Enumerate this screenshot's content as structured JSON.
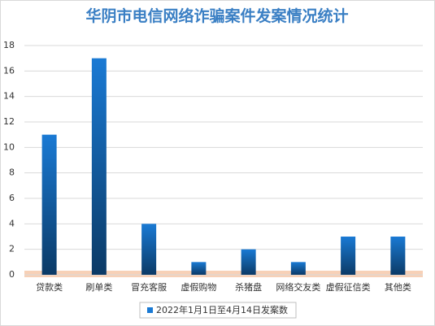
{
  "chart_data": {
    "type": "bar",
    "title": "华阴市电信网络诈骗案件发案情况统计",
    "categories": [
      "贷款类",
      "刷单类",
      "冒充客服",
      "虚假购物",
      "杀猪盘",
      "网络交友类",
      "虚假征信类",
      "其他类"
    ],
    "series": [
      {
        "name": "2022年1月1日至4月14日发案数",
        "color": "#1a7ad4",
        "values": [
          11,
          17,
          4,
          1,
          2,
          1,
          3,
          3
        ]
      }
    ],
    "ylim": [
      0,
      18
    ],
    "yticks": [
      0,
      2,
      4,
      6,
      8,
      10,
      12,
      14,
      16,
      18
    ],
    "grid": true,
    "legend": "bottom"
  }
}
